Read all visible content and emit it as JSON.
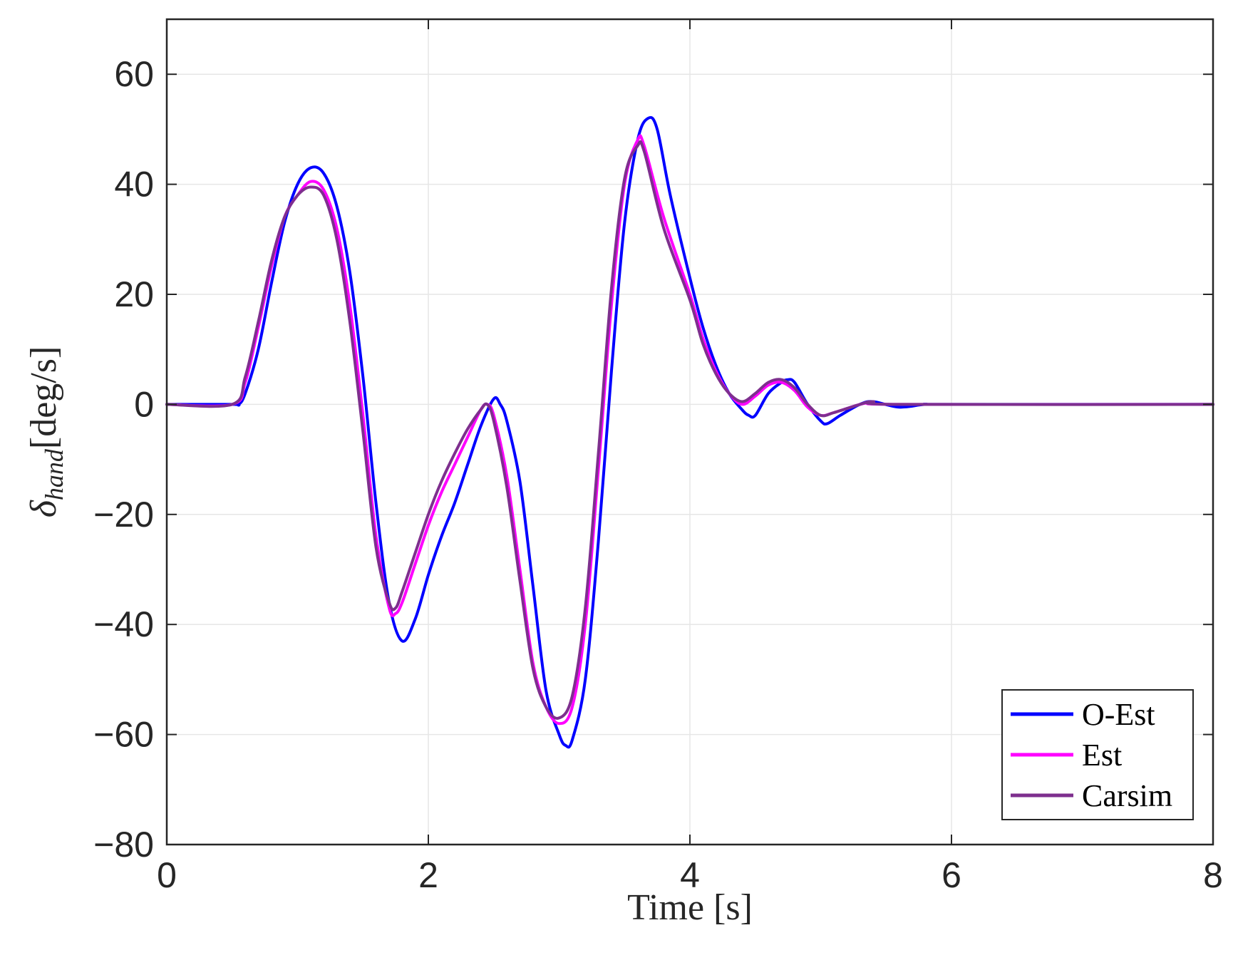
{
  "chart_data": {
    "type": "line",
    "xlabel": "Time [s]",
    "ylabel": {
      "base": "δ",
      "sub": "hand",
      "units": "[deg/s]"
    },
    "xlim": [
      0,
      8
    ],
    "ylim": [
      -80,
      70
    ],
    "xticks": [
      0,
      2,
      4,
      6,
      8
    ],
    "yticks": [
      -80,
      -60,
      -40,
      -20,
      0,
      20,
      40,
      60
    ],
    "xtick_labels": [
      "0",
      "2",
      "4",
      "6",
      "8"
    ],
    "ytick_labels": [
      "−80",
      "−60",
      "−40",
      "−20",
      "0",
      "20",
      "40",
      "60"
    ],
    "grid": true,
    "legend_position": "bottom-right",
    "series": [
      {
        "name": "O-Est",
        "color": "#0000ff",
        "points": [
          [
            0,
            0
          ],
          [
            0.5,
            0
          ],
          [
            0.55,
            0
          ],
          [
            0.6,
            2
          ],
          [
            0.7,
            10
          ],
          [
            0.8,
            22
          ],
          [
            0.9,
            33
          ],
          [
            1.0,
            40
          ],
          [
            1.1,
            43
          ],
          [
            1.2,
            42
          ],
          [
            1.3,
            36
          ],
          [
            1.4,
            24
          ],
          [
            1.5,
            5
          ],
          [
            1.6,
            -18
          ],
          [
            1.7,
            -36
          ],
          [
            1.8,
            -43
          ],
          [
            1.9,
            -39
          ],
          [
            2.0,
            -31
          ],
          [
            2.1,
            -24
          ],
          [
            2.2,
            -18
          ],
          [
            2.3,
            -11
          ],
          [
            2.4,
            -4
          ],
          [
            2.5,
            1
          ],
          [
            2.55,
            0
          ],
          [
            2.6,
            -3
          ],
          [
            2.7,
            -14
          ],
          [
            2.8,
            -33
          ],
          [
            2.9,
            -52
          ],
          [
            3.0,
            -60
          ],
          [
            3.05,
            -62
          ],
          [
            3.1,
            -61
          ],
          [
            3.2,
            -50
          ],
          [
            3.3,
            -25
          ],
          [
            3.4,
            6
          ],
          [
            3.5,
            33
          ],
          [
            3.6,
            48
          ],
          [
            3.68,
            52
          ],
          [
            3.75,
            50
          ],
          [
            3.85,
            38
          ],
          [
            4.0,
            23
          ],
          [
            4.1,
            14
          ],
          [
            4.2,
            7
          ],
          [
            4.3,
            2
          ],
          [
            4.4,
            -1
          ],
          [
            4.45,
            -2
          ],
          [
            4.5,
            -2
          ],
          [
            4.6,
            2
          ],
          [
            4.7,
            4
          ],
          [
            4.75,
            4.5
          ],
          [
            4.8,
            4
          ],
          [
            4.9,
            0
          ],
          [
            5.0,
            -3
          ],
          [
            5.05,
            -3.5
          ],
          [
            5.15,
            -2
          ],
          [
            5.3,
            0
          ],
          [
            5.4,
            0.5
          ],
          [
            5.6,
            -0.5
          ],
          [
            5.8,
            0
          ],
          [
            6.0,
            0
          ],
          [
            8,
            0
          ]
        ]
      },
      {
        "name": "Est",
        "color": "#ff00ff",
        "points": [
          [
            0,
            0
          ],
          [
            0.5,
            0
          ],
          [
            0.6,
            4
          ],
          [
            0.7,
            14
          ],
          [
            0.8,
            25
          ],
          [
            0.9,
            34
          ],
          [
            1.0,
            38
          ],
          [
            1.1,
            40.5
          ],
          [
            1.2,
            39
          ],
          [
            1.3,
            32
          ],
          [
            1.4,
            18
          ],
          [
            1.5,
            -2
          ],
          [
            1.6,
            -24
          ],
          [
            1.7,
            -37
          ],
          [
            1.75,
            -38
          ],
          [
            1.8,
            -36
          ],
          [
            1.9,
            -29
          ],
          [
            2.0,
            -22
          ],
          [
            2.1,
            -16
          ],
          [
            2.2,
            -11
          ],
          [
            2.3,
            -6
          ],
          [
            2.4,
            -1
          ],
          [
            2.45,
            0
          ],
          [
            2.5,
            -2
          ],
          [
            2.6,
            -13
          ],
          [
            2.7,
            -30
          ],
          [
            2.8,
            -47
          ],
          [
            2.9,
            -55
          ],
          [
            3.0,
            -58
          ],
          [
            3.1,
            -55
          ],
          [
            3.2,
            -40
          ],
          [
            3.3,
            -12
          ],
          [
            3.4,
            18
          ],
          [
            3.5,
            40
          ],
          [
            3.6,
            48
          ],
          [
            3.65,
            47
          ],
          [
            3.8,
            34
          ],
          [
            4.0,
            20
          ],
          [
            4.1,
            12
          ],
          [
            4.2,
            6
          ],
          [
            4.3,
            2
          ],
          [
            4.4,
            0
          ],
          [
            4.5,
            1.5
          ],
          [
            4.6,
            3.5
          ],
          [
            4.7,
            4
          ],
          [
            4.8,
            2.5
          ],
          [
            4.9,
            -0.5
          ],
          [
            5.0,
            -2
          ],
          [
            5.1,
            -1.5
          ],
          [
            5.3,
            0
          ],
          [
            5.4,
            0.3
          ],
          [
            5.6,
            0
          ],
          [
            8,
            0
          ]
        ]
      },
      {
        "name": "Carsim",
        "color": "#7e2f8e",
        "points": [
          [
            0,
            0
          ],
          [
            0.5,
            0
          ],
          [
            0.6,
            5
          ],
          [
            0.7,
            15
          ],
          [
            0.8,
            26
          ],
          [
            0.9,
            34
          ],
          [
            1.0,
            38
          ],
          [
            1.1,
            39.5
          ],
          [
            1.2,
            38
          ],
          [
            1.3,
            30
          ],
          [
            1.4,
            15
          ],
          [
            1.5,
            -5
          ],
          [
            1.6,
            -26
          ],
          [
            1.7,
            -36
          ],
          [
            1.75,
            -37
          ],
          [
            1.8,
            -34
          ],
          [
            1.9,
            -27
          ],
          [
            2.0,
            -20
          ],
          [
            2.1,
            -14
          ],
          [
            2.2,
            -9
          ],
          [
            2.3,
            -4.5
          ],
          [
            2.4,
            -1
          ],
          [
            2.45,
            0
          ],
          [
            2.5,
            -3
          ],
          [
            2.6,
            -15
          ],
          [
            2.7,
            -32
          ],
          [
            2.8,
            -48
          ],
          [
            2.9,
            -55
          ],
          [
            3.0,
            -57
          ],
          [
            3.1,
            -53
          ],
          [
            3.2,
            -37
          ],
          [
            3.3,
            -9
          ],
          [
            3.4,
            21
          ],
          [
            3.5,
            41
          ],
          [
            3.6,
            47
          ],
          [
            3.65,
            46
          ],
          [
            3.8,
            32
          ],
          [
            4.0,
            19
          ],
          [
            4.1,
            11
          ],
          [
            4.2,
            5.5
          ],
          [
            4.3,
            2
          ],
          [
            4.4,
            0.5
          ],
          [
            4.5,
            2
          ],
          [
            4.6,
            4
          ],
          [
            4.7,
            4.5
          ],
          [
            4.8,
            3
          ],
          [
            4.9,
            0
          ],
          [
            5.0,
            -2
          ],
          [
            5.1,
            -1.5
          ],
          [
            5.3,
            0
          ],
          [
            5.4,
            0.5
          ],
          [
            5.6,
            0
          ],
          [
            8,
            0
          ]
        ]
      }
    ]
  }
}
